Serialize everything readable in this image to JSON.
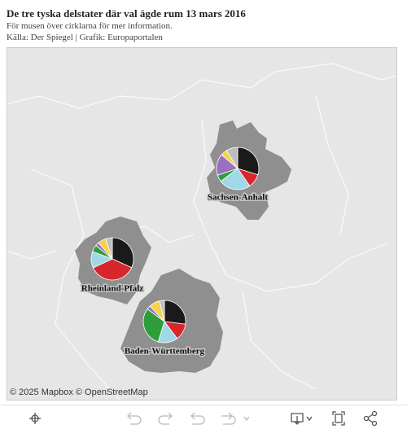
{
  "header": {
    "title": "De tre tyska delstater där val ägde rum 13 mars 2016",
    "subtitle": "För musen över cirklarna för mer information.",
    "source": "Källa: Der Spiegel | Grafik: Europaportalen"
  },
  "map": {
    "attribution": "© 2025 Mapbox © OpenStreetMap",
    "regions": [
      {
        "label": "Sachsen-Anhalt",
        "values": [
          29.8,
          10.6,
          24.3,
          5.2,
          16.3,
          4.9,
          8.9
        ]
      },
      {
        "label": "Rheinland-Pfalz",
        "values": [
          31.8,
          36.2,
          12.6,
          5.3,
          2.8,
          6.2,
          5.1
        ]
      },
      {
        "label": "Baden-Württemberg",
        "values": [
          27.0,
          12.7,
          15.1,
          30.3,
          2.9,
          8.3,
          3.7
        ]
      }
    ],
    "colors": [
      "#1a1a1a",
      "#d7262c",
      "#9fd8e6",
      "#2e9e3c",
      "#9a6fc4",
      "#f4d34a",
      "#bdbdbd"
    ]
  }
}
